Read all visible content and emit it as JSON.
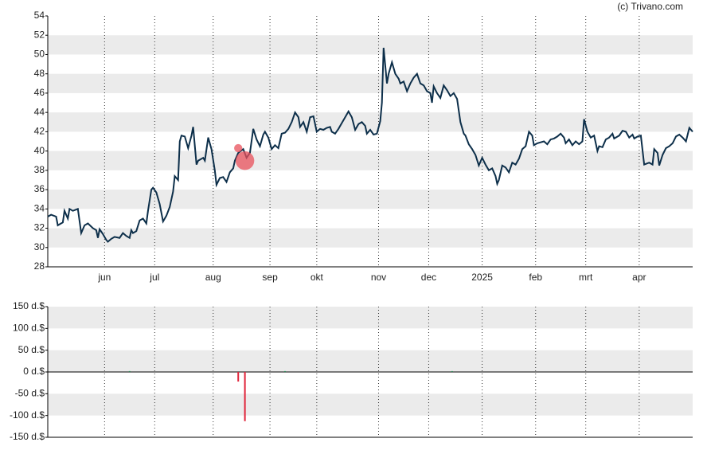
{
  "credit": "(c) Trivano.com",
  "chart_data": [
    {
      "type": "line",
      "color": "#0d2f4a",
      "grid": true,
      "xlim": [
        0,
        386
      ],
      "xticks": [
        {
          "value": 34,
          "label": "jun"
        },
        {
          "value": 64,
          "label": "jul"
        },
        {
          "value": 99,
          "label": "aug"
        },
        {
          "value": 133,
          "label": "sep"
        },
        {
          "value": 161,
          "label": "okt"
        },
        {
          "value": 198,
          "label": "nov"
        },
        {
          "value": 228,
          "label": "dec"
        },
        {
          "value": 260,
          "label": "2025"
        },
        {
          "value": 292,
          "label": "feb"
        },
        {
          "value": 322,
          "label": "mrt"
        },
        {
          "value": 354,
          "label": "apr"
        }
      ],
      "ylim": [
        28,
        54
      ],
      "yticks": [
        28,
        30,
        32,
        34,
        36,
        38,
        40,
        42,
        44,
        46,
        48,
        50,
        52,
        54
      ],
      "x": [
        0,
        2,
        5,
        6,
        9,
        10,
        12,
        13,
        15,
        18,
        20,
        22,
        24,
        27,
        29,
        30,
        31,
        33,
        35,
        36,
        38,
        40,
        43,
        45,
        47,
        49,
        50,
        51,
        53,
        55,
        57,
        59,
        60,
        62,
        63,
        65,
        67,
        69,
        71,
        73,
        75,
        76,
        78,
        79,
        80,
        82,
        84,
        86,
        87,
        89,
        90,
        93,
        94,
        96,
        98,
        100,
        101,
        103,
        105,
        107,
        109,
        111,
        112,
        114,
        117,
        119,
        121,
        123,
        125,
        127,
        129,
        130,
        132,
        134,
        136,
        138,
        140,
        142,
        144,
        146,
        148,
        150,
        151,
        153,
        155,
        157,
        159,
        161,
        163,
        165,
        167,
        169,
        170,
        172,
        174,
        176,
        178,
        180,
        182,
        184,
        186,
        188,
        190,
        191,
        193,
        195,
        197,
        199,
        200,
        201,
        203,
        204,
        206,
        208,
        210,
        211,
        213,
        215,
        217,
        219,
        221,
        223,
        225,
        227,
        229,
        230,
        231,
        233,
        235,
        237,
        239,
        241,
        243,
        245,
        247,
        249,
        250,
        252,
        254,
        256,
        258,
        260,
        262,
        264,
        266,
        268,
        269,
        270,
        272,
        274,
        276,
        278,
        280,
        282,
        284,
        286,
        288,
        290,
        291,
        293,
        295,
        297,
        299,
        301,
        303,
        305,
        307,
        309,
        310,
        312,
        314,
        316,
        318,
        320,
        321,
        323,
        325,
        327,
        329,
        330,
        332,
        334,
        336,
        338,
        339,
        342,
        344,
        346,
        348,
        350,
        351,
        353,
        355,
        357,
        360,
        362,
        363,
        365,
        366,
        368,
        370,
        372,
        374,
        376,
        378,
        380,
        382,
        384,
        386
      ],
      "values": [
        33.2,
        33.4,
        33.2,
        32.3,
        32.6,
        33.8,
        33.0,
        34.0,
        33.8,
        34.0,
        31.5,
        32.3,
        32.5,
        32.0,
        31.8,
        31.0,
        31.9,
        31.4,
        30.8,
        30.6,
        30.9,
        31.1,
        31.0,
        31.5,
        31.2,
        31.0,
        31.8,
        31.5,
        31.7,
        32.8,
        33.0,
        32.5,
        33.8,
        36.0,
        36.2,
        35.7,
        34.5,
        32.7,
        33.3,
        34.2,
        35.8,
        37.4,
        37.0,
        41.0,
        41.6,
        41.5,
        40.3,
        41.6,
        42.5,
        38.6,
        39.0,
        39.3,
        39.0,
        41.4,
        40.2,
        38.0,
        36.5,
        37.2,
        37.3,
        36.8,
        37.8,
        38.2,
        39.0,
        39.8,
        40.2,
        39.3,
        39.8,
        42.3,
        41.2,
        40.5,
        41.7,
        42.0,
        41.4,
        40.2,
        40.6,
        40.3,
        41.8,
        41.9,
        42.3,
        43.0,
        44.0,
        43.5,
        42.5,
        43.0,
        42.0,
        43.5,
        43.6,
        42.0,
        42.3,
        42.2,
        42.4,
        42.5,
        42.0,
        41.8,
        42.3,
        42.9,
        43.5,
        44.1,
        43.5,
        42.2,
        42.8,
        43.0,
        42.6,
        41.8,
        42.2,
        41.7,
        41.8,
        43.1,
        45.0,
        50.7,
        47.0,
        48.0,
        49.2,
        48.0,
        47.5,
        47.0,
        47.2,
        46.2,
        47.0,
        47.6,
        48.0,
        47.0,
        46.8,
        46.2,
        46.0,
        45.0,
        46.7,
        46.0,
        45.5,
        46.8,
        46.3,
        45.7,
        46.0,
        45.4,
        43.0,
        41.8,
        41.6,
        40.7,
        40.2,
        39.6,
        38.5,
        39.3,
        38.6,
        38.0,
        38.2,
        37.4,
        36.6,
        37.0,
        38.5,
        38.3,
        37.8,
        38.8,
        38.6,
        39.2,
        40.2,
        40.5,
        42.0,
        41.6,
        40.6,
        40.8,
        40.9,
        41.0,
        40.7,
        41.2,
        41.3,
        41.5,
        41.8,
        41.4,
        40.8,
        41.2,
        40.6,
        41.0,
        40.7,
        41.0,
        43.3,
        42.0,
        41.4,
        41.6,
        40.0,
        40.5,
        40.4,
        41.2,
        41.4,
        41.8,
        41.3,
        41.6,
        42.1,
        42.0,
        41.4,
        41.7,
        41.3,
        41.5,
        41.6,
        38.6,
        38.8,
        38.6,
        40.2,
        39.8,
        38.5,
        39.6,
        40.3,
        40.5,
        40.8,
        41.5,
        41.7,
        41.4,
        41.0,
        42.4,
        42.0
      ],
      "markers": {
        "color": "#e8505b",
        "x": [
          114,
          118
        ],
        "values": [
          40.3,
          39.0
        ]
      }
    },
    {
      "type": "bar",
      "grid": true,
      "xlim": [
        0,
        386
      ],
      "xticks": [
        {
          "value": 34
        },
        {
          "value": 64
        },
        {
          "value": 99
        },
        {
          "value": 133
        },
        {
          "value": 161
        },
        {
          "value": 198
        },
        {
          "value": 228
        },
        {
          "value": 260
        },
        {
          "value": 292
        },
        {
          "value": 322
        },
        {
          "value": 354
        }
      ],
      "ylim": [
        -150,
        150
      ],
      "yticks": [
        {
          "value": 150,
          "label": "150 d.$"
        },
        {
          "value": 100,
          "label": "100 d.$"
        },
        {
          "value": 50,
          "label": "50 d.$"
        },
        {
          "value": 0,
          "label": "0 d.$"
        },
        {
          "value": -50,
          "label": "-50 d.$"
        },
        {
          "value": -100,
          "label": "-100 d.$"
        },
        {
          "value": -150,
          "label": "-150 d.$"
        }
      ],
      "x": [
        49,
        114,
        118,
        142,
        242
      ],
      "values": [
        2,
        -22,
        -113,
        2,
        2
      ],
      "colors": [
        "#2e8b57",
        "#e0243a",
        "#e0243a",
        "#2e8b57",
        "#2e8b57"
      ]
    }
  ]
}
